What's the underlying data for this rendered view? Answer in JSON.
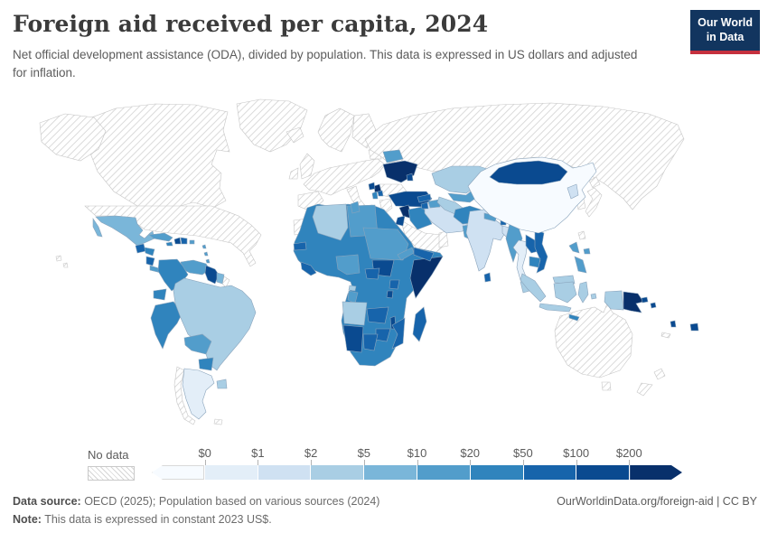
{
  "header": {
    "title": "Foreign aid received per capita, 2024",
    "subtitle": "Net official development assistance (ODA), divided by population. This data is expressed in US dollars and adjusted for inflation.",
    "logo": {
      "line1": "Our World",
      "line2": "in Data",
      "bg_color": "#12355f",
      "accent_color": "#c5303e"
    }
  },
  "legend": {
    "no_data_label": "No data",
    "ticks": [
      "$0",
      "$1",
      "$2",
      "$5",
      "$10",
      "$20",
      "$50",
      "$100",
      "$200"
    ],
    "colors": [
      "#f7fbff",
      "#e3eef8",
      "#cfe1f2",
      "#a9cee4",
      "#7ab6d9",
      "#529dcb",
      "#3084bd",
      "#1764ab",
      "#0a4a90",
      "#08306b"
    ]
  },
  "footer": {
    "source_label": "Data source:",
    "source_text": " OECD (2025); Population based on various sources (2024)",
    "note_label": "Note:",
    "note_text": " This data is expressed in constant 2023 US$.",
    "link": "OurWorldinData.org/foreign-aid | CC BY"
  },
  "chart_data": {
    "type": "choropleth",
    "title": "Foreign aid received per capita, 2024",
    "unit": "constant 2023 US$ per person",
    "legend_position": "bottom",
    "bin_labels": [
      "<$0",
      "$0-$1",
      "$1-$2",
      "$2-$5",
      "$5-$10",
      "$10-$20",
      "$20-$50",
      "$50-$100",
      "$100-$200",
      ">$200"
    ],
    "bin_colors": [
      "#f7fbff",
      "#e3eef8",
      "#cfe1f2",
      "#a9cee4",
      "#7ab6d9",
      "#529dcb",
      "#3084bd",
      "#1764ab",
      "#0a4a90",
      "#08306b"
    ],
    "no_data_style": "gray-diagonal-hatch",
    "region_bins": {
      "united_states": "no_data",
      "canada": "no_data",
      "greenland": "no_data",
      "iceland": "no_data",
      "united_kingdom": "no_data",
      "ireland": "no_data",
      "scandinavia": "no_data",
      "finland": "no_data",
      "baltics": "no_data",
      "europe_other": "no_data",
      "spain_portugal": "no_data",
      "italy": "no_data",
      "romania_bulgaria": "no_data",
      "greece": "no_data",
      "russia": "no_data",
      "saudi_arabia": "no_data",
      "oman": "no_data",
      "japan": "no_data",
      "south_korea": "no_data",
      "taiwan": "no_data",
      "australia": "no_data",
      "new_zealand": "no_data",
      "new_caledonia": "no_data",
      "chile": "no_data",
      "falkland_islands": "no_data",
      "french_guiana": "no_data",
      "western_sahara": "no_data",
      "china": 0,
      "argentina": 1,
      "thailand": 1,
      "india": 2,
      "bangladesh": 2,
      "north_korea": 2,
      "iran": 2,
      "brazil": 3,
      "uruguay": 3,
      "algeria": 3,
      "angola": 3,
      "equatorial_guinea": 3,
      "kazakhstan": 3,
      "turkmenistan": 3,
      "malaysia": 3,
      "indonesia": 3,
      "mexico": 4,
      "suriname": 4,
      "cuba": 5,
      "puerto_rico": 5,
      "lesser_antilles": 5,
      "venezuela": 5,
      "bolivia": 5,
      "costa_rica_panama": 5,
      "tunisia": 5,
      "libya": 5,
      "sudan": 5,
      "eritrea": 5,
      "nigeria": 5,
      "gabon": 5,
      "belarus": 5,
      "azerbaijan": 5,
      "uzbekistan": 5,
      "pakistan": 5,
      "nepal": 5,
      "myanmar": 5,
      "philippines": 5,
      "honduras": 6,
      "jamaica": 6,
      "colombia": 6,
      "ecuador": 6,
      "peru": 6,
      "paraguay": 6,
      "africa_other": 6,
      "iraq": 6,
      "albania": 6,
      "kyrgyzstan": 6,
      "tajikistan": 6,
      "afghanistan": 6,
      "cambodia": 6,
      "timor_leste": 6,
      "guatemala": 7,
      "nicaragua": 7,
      "dominican_republic": 7,
      "senegal": 7,
      "sierra_leone_liberia": 7,
      "central_african_republic": 7,
      "uganda": 7,
      "zambia": 7,
      "mozambique": 7,
      "zimbabwe": 7,
      "botswana": 7,
      "madagascar": 7,
      "yemen": 7,
      "georgia": 7,
      "armenia": 7,
      "vietnam": 7,
      "laos": 7,
      "sri_lanka": 7,
      "bhutan": 7,
      "north_macedonia": 7,
      "haiti": 8,
      "guyana": 8,
      "south_sudan": 8,
      "rwanda_burundi": 8,
      "malawi": 8,
      "namibia": 8,
      "moldova": 8,
      "bosnia": 8,
      "turkey": 8,
      "jordan": 8,
      "mongolia": 8,
      "solomon_islands": 8,
      "vanuatu": 8,
      "fiji": 8,
      "ukraine": 9,
      "serbia": 9,
      "syria": 9,
      "somalia": 9,
      "papua_new_guinea": 9
    }
  }
}
